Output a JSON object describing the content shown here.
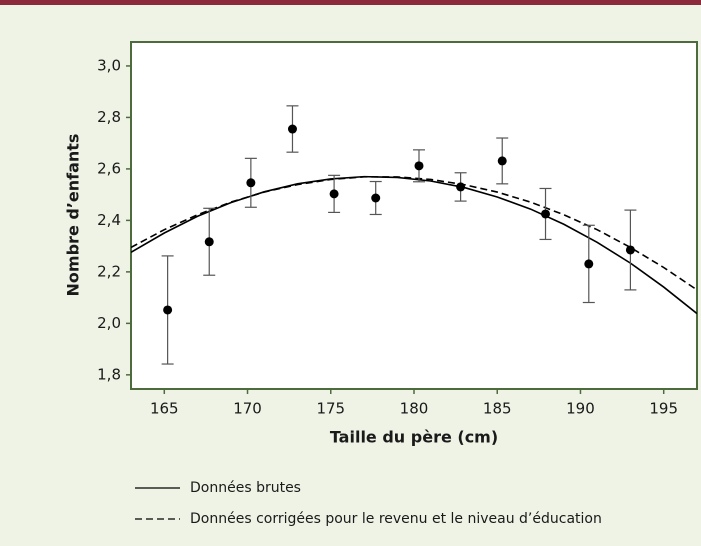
{
  "chart_data": {
    "type": "scatter",
    "x_label": "Taille du père (cm)",
    "y_label": "Nombre d’enfants",
    "xlim": [
      163,
      197
    ],
    "ylim": [
      1.745,
      3.093
    ],
    "xticks": [
      165,
      170,
      175,
      180,
      185,
      190,
      195
    ],
    "yticks": [
      {
        "value": 1.8,
        "label": "1,8"
      },
      {
        "value": 2.0,
        "label": "2,0"
      },
      {
        "value": 2.2,
        "label": "2,2"
      },
      {
        "value": 2.4,
        "label": "2,4"
      },
      {
        "value": 2.6,
        "label": "2,6"
      },
      {
        "value": 2.8,
        "label": "2,8"
      },
      {
        "value": 3.0,
        "label": "3,0"
      }
    ],
    "points": {
      "color": "#000000",
      "x": [
        165.2,
        167.7,
        170.2,
        172.7,
        175.2,
        177.7,
        180.3,
        182.8,
        185.3,
        187.9,
        190.5,
        193.0
      ],
      "values": [
        2.052,
        2.317,
        2.546,
        2.755,
        2.503,
        2.487,
        2.612,
        2.53,
        2.631,
        2.425,
        2.231,
        2.285
      ],
      "errors": [
        0.21,
        0.13,
        0.095,
        0.09,
        0.072,
        0.064,
        0.062,
        0.055,
        0.089,
        0.099,
        0.15,
        0.155
      ]
    },
    "series": [
      {
        "name": "Données brutes",
        "color": "#000000",
        "dash": false,
        "x": [
          163,
          165,
          167,
          169,
          171,
          173,
          175,
          177,
          179,
          181,
          183,
          185,
          187,
          189,
          191,
          193,
          195,
          197
        ],
        "values": [
          2.276,
          2.351,
          2.416,
          2.469,
          2.511,
          2.542,
          2.561,
          2.57,
          2.567,
          2.553,
          2.528,
          2.491,
          2.444,
          2.385,
          2.315,
          2.234,
          2.141,
          2.038
        ]
      },
      {
        "name": "Données corrigées pour le revenu et le niveau d’éducation",
        "color": "#000000",
        "dash": true,
        "x": [
          163,
          165,
          167,
          169,
          171,
          173,
          175,
          177,
          179,
          181,
          183,
          185,
          187,
          189,
          191,
          193,
          195,
          197
        ],
        "values": [
          2.295,
          2.364,
          2.422,
          2.471,
          2.51,
          2.539,
          2.559,
          2.569,
          2.569,
          2.559,
          2.539,
          2.51,
          2.471,
          2.422,
          2.364,
          2.295,
          2.217,
          2.13
        ]
      }
    ]
  }
}
